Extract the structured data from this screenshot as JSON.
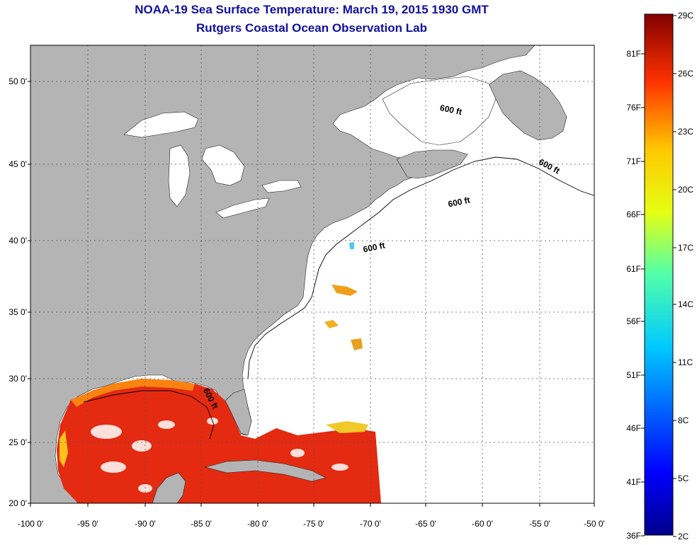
{
  "title_line1": "NOAA-19 Sea Surface Temperature:  March 19, 2015 1930 GMT",
  "title_line2": "Rutgers Coastal Ocean Observation Lab",
  "lat_labels": [
    "50 0'",
    "45 0'",
    "40 0'",
    "35 0'",
    "30 0'",
    "25 0'",
    "20 0'"
  ],
  "lon_labels": [
    "-100 0'",
    "-95 0'",
    "-90 0'",
    "-85 0'",
    "-80 0'",
    "-75 0'",
    "-70 0'",
    "-65 0'",
    "-60 0'",
    "-55 0'",
    "-50 0'"
  ],
  "isobath_label": "600 ft",
  "colorbar_celsius": [
    "29C",
    "26C",
    "23C",
    "20C",
    "17C",
    "14C",
    "11C",
    "8C",
    "5C",
    "2C"
  ],
  "colorbar_fahrenheit": [
    "81F",
    "76F",
    "71F",
    "66F",
    "61F",
    "56F",
    "51F",
    "46F",
    "41F",
    "36F"
  ],
  "colors": {
    "land": "#b4b4b4",
    "ocean": "#ffffff",
    "title": "#1010a0",
    "warm_sst": "#e42a10"
  }
}
